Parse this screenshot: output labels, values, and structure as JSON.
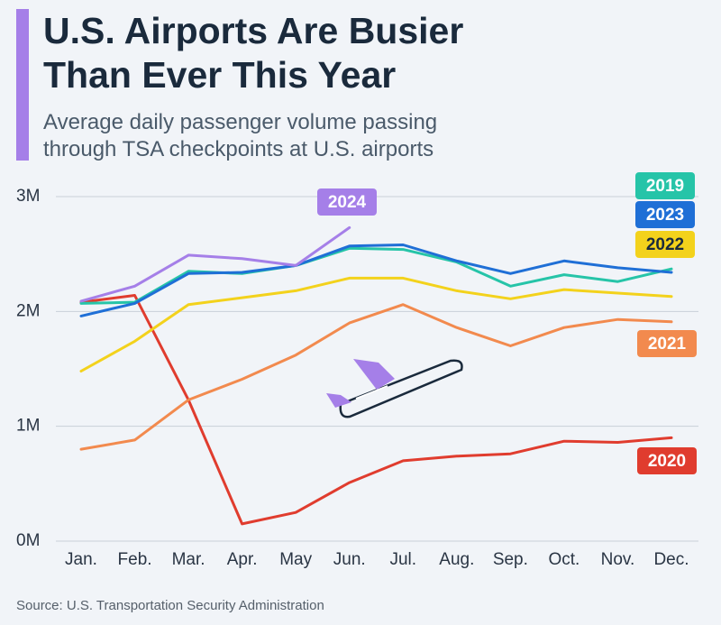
{
  "chart_data": {
    "type": "line",
    "title": [
      "U.S. Airports Are Busier",
      "Than Ever This Year"
    ],
    "subtitle": [
      "Average daily passenger volume passing",
      "through TSA checkpoints at U.S. airports"
    ],
    "source": "Source: U.S. Transportation Security Administration",
    "categories": [
      "Jan.",
      "Feb.",
      "Mar.",
      "Apr.",
      "May",
      "Jun.",
      "Jul.",
      "Aug.",
      "Sep.",
      "Oct.",
      "Nov.",
      "Dec."
    ],
    "ylim": [
      0,
      3000000
    ],
    "yticks": [
      {
        "value": 0,
        "label": "0M"
      },
      {
        "value": 1000000,
        "label": "1M"
      },
      {
        "value": 2000000,
        "label": "2M"
      },
      {
        "value": 3000000,
        "label": "3M"
      }
    ],
    "grid": true,
    "series": [
      {
        "name": "2020",
        "color": "#e03c2e",
        "values": [
          2080000,
          2140000,
          1230000,
          150000,
          250000,
          510000,
          700000,
          740000,
          760000,
          870000,
          860000,
          900000
        ]
      },
      {
        "name": "2021",
        "color": "#f28a4e",
        "values": [
          800000,
          880000,
          1230000,
          1410000,
          1620000,
          1900000,
          2060000,
          1860000,
          1700000,
          1860000,
          1930000,
          1910000
        ]
      },
      {
        "name": "2022",
        "color": "#f3d21c",
        "values": [
          1480000,
          1740000,
          2060000,
          2120000,
          2180000,
          2290000,
          2290000,
          2180000,
          2110000,
          2190000,
          2160000,
          2130000
        ]
      },
      {
        "name": "2019",
        "color": "#26c4a8",
        "values": [
          2070000,
          2080000,
          2350000,
          2330000,
          2400000,
          2550000,
          2540000,
          2430000,
          2220000,
          2320000,
          2260000,
          2370000
        ]
      },
      {
        "name": "2023",
        "color": "#1f6fd6",
        "values": [
          1960000,
          2070000,
          2330000,
          2340000,
          2400000,
          2570000,
          2580000,
          2440000,
          2330000,
          2440000,
          2380000,
          2340000
        ]
      },
      {
        "name": "2024",
        "color": "#a57fe8",
        "values": [
          2090000,
          2220000,
          2490000,
          2460000,
          2400000,
          2730000,
          null,
          null,
          null,
          null,
          null,
          null
        ]
      }
    ]
  }
}
